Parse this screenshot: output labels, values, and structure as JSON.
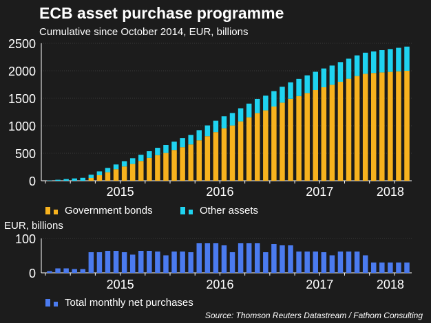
{
  "title": "ECB asset purchase programme",
  "subtitle": "Cumulative since October 2014, EUR, billions",
  "source": "Source: Thomson Reuters Datastream / Fathom Consulting",
  "colors": {
    "government": "#f7b21e",
    "other": "#1fd3f0",
    "monthly": "#4b7bef",
    "background": "#1c1c1c"
  },
  "chart_data": [
    {
      "type": "bar",
      "stacked": true,
      "title": "ECB asset purchase programme",
      "subtitle": "Cumulative since October 2014, EUR, billions",
      "x_start": "2014-10",
      "x_end": "2018-05",
      "frequency": "monthly",
      "year_labels": [
        "2015",
        "2016",
        "2017",
        "2018"
      ],
      "ylim": [
        0,
        2500
      ],
      "yticks": [
        0,
        500,
        1000,
        1500,
        2000,
        2500
      ],
      "grid": true,
      "legend": [
        "Government bonds",
        "Other assets"
      ],
      "legend_position": "bottom-left",
      "series": [
        {
          "name": "Government bonds",
          "values": [
            0,
            0,
            0,
            0,
            0,
            50,
            100,
            155,
            210,
            260,
            305,
            360,
            415,
            465,
            505,
            560,
            610,
            660,
            735,
            810,
            885,
            955,
            1005,
            1080,
            1155,
            1230,
            1280,
            1350,
            1420,
            1490,
            1540,
            1595,
            1650,
            1700,
            1745,
            1800,
            1855,
            1905,
            1945,
            1960,
            1970,
            1980,
            1990,
            2000
          ]
        },
        {
          "name": "Other assets",
          "values": [
            5,
            18,
            31,
            42,
            53,
            60,
            70,
            78,
            86,
            96,
            104,
            113,
            122,
            134,
            145,
            152,
            164,
            174,
            185,
            196,
            207,
            217,
            227,
            238,
            248,
            258,
            268,
            280,
            290,
            300,
            312,
            322,
            332,
            342,
            350,
            358,
            365,
            375,
            383,
            393,
            405,
            415,
            428,
            440
          ]
        }
      ]
    },
    {
      "type": "bar",
      "ylabel": "EUR, billions",
      "x_start": "2014-10",
      "x_end": "2018-05",
      "frequency": "monthly",
      "year_labels": [
        "2015",
        "2016",
        "2017",
        "2018"
      ],
      "ylim": [
        0,
        100
      ],
      "yticks": [
        0,
        100
      ],
      "legend": [
        "Total monthly net purchases"
      ],
      "legend_position": "bottom-left",
      "series": [
        {
          "name": "Total monthly net purchases",
          "values": [
            5,
            13,
            13,
            11,
            11,
            60,
            60,
            64,
            64,
            60,
            53,
            64,
            64,
            62,
            51,
            62,
            62,
            60,
            86,
            86,
            86,
            80,
            60,
            86,
            86,
            86,
            60,
            84,
            80,
            80,
            62,
            62,
            62,
            60,
            51,
            62,
            62,
            62,
            51,
            30,
            30,
            30,
            30,
            30
          ]
        }
      ]
    }
  ]
}
